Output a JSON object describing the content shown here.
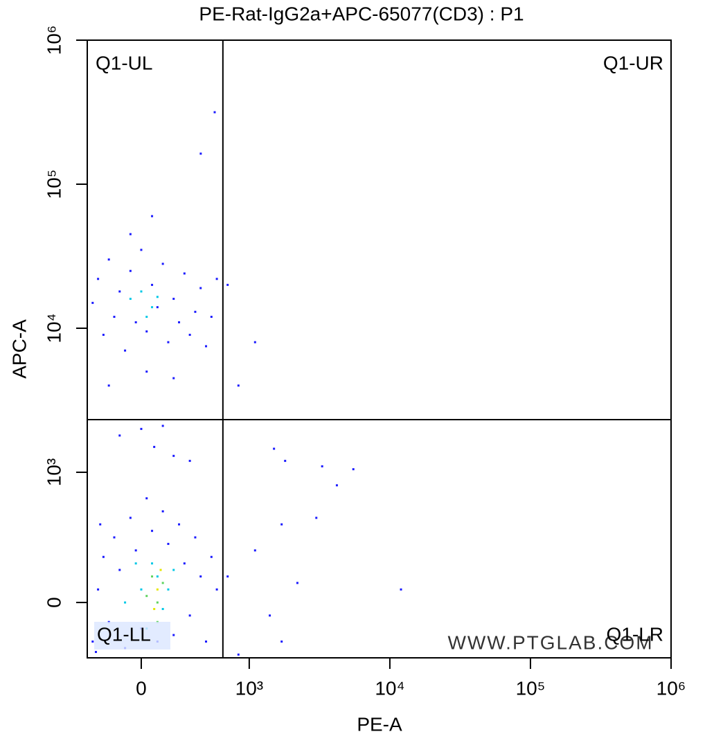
{
  "chart_data": {
    "type": "scatter",
    "title": "PE-Rat-IgG2a+APC-65077(CD3) : P1",
    "x_label": "PE-A",
    "y_label": "APC-A",
    "xscale": "biexponential",
    "yscale": "biexponential",
    "xlim": [
      -500,
      1000000
    ],
    "ylim": [
      -425,
      1000000
    ],
    "xticks": [
      0,
      {
        "value": 1000,
        "label": "10³"
      },
      {
        "value": 10000,
        "label": "10⁴"
      },
      {
        "value": 100000,
        "label": "10⁵"
      },
      {
        "value": 1000000,
        "label": "10⁶"
      }
    ],
    "yticks": [
      0,
      {
        "value": 1000,
        "label": "10³"
      },
      {
        "value": 10000,
        "label": "10⁴"
      },
      {
        "value": 100000,
        "label": "10⁵"
      },
      {
        "value": 1000000,
        "label": "10⁶"
      }
    ],
    "gate": {
      "x": 756,
      "y": 2320
    },
    "quadrants": [
      "Q1-UL",
      "Q1-UR",
      "Q1-LL",
      "Q1-LR"
    ],
    "watermark": "WWW.PTGLAB.COM",
    "series": [
      {
        "color": "#1a1aff",
        "x": [
          -450,
          -400,
          -350,
          -300,
          -250,
          -200,
          -150,
          -100,
          -50,
          0,
          50,
          100,
          150,
          200,
          250,
          300,
          350,
          400,
          450,
          500,
          550,
          600,
          650,
          700,
          -420,
          -380,
          120,
          -200,
          300,
          450,
          0,
          200,
          -450,
          -400,
          -350,
          -300,
          -250,
          -200,
          -150,
          -100,
          -50,
          0,
          50,
          100,
          150,
          200,
          250,
          300,
          350,
          400,
          450,
          500,
          550,
          600,
          650,
          700,
          -100,
          50,
          300,
          -300,
          100,
          800,
          1100,
          900,
          1500,
          1800,
          3300,
          5500,
          4200,
          3000,
          1700,
          1100,
          2200,
          12000,
          800,
          1400,
          1700,
          900,
          680,
          551
        ],
        "y": [
          -300,
          100,
          350,
          -150,
          500,
          250,
          -350,
          650,
          400,
          -200,
          800,
          550,
          -300,
          700,
          450,
          -250,
          600,
          300,
          -100,
          500,
          200,
          -300,
          350,
          100,
          -380,
          600,
          1500,
          1800,
          1300,
          1200,
          2000,
          2100,
          15000,
          22000,
          9000,
          30000,
          12000,
          18000,
          7000,
          25000,
          11000,
          35000,
          9500,
          20000,
          14000,
          28000,
          8000,
          16000,
          11000,
          24000,
          9000,
          13000,
          19000,
          7500,
          12000,
          22000,
          45000,
          5000,
          4500,
          4000,
          60000,
          20000,
          8000,
          4000,
          1457,
          1200,
          1100,
          1050,
          900,
          650,
          600,
          400,
          150,
          100,
          200,
          -100,
          -300,
          -400,
          316000,
          163000
        ]
      },
      {
        "color": "#00c8e6",
        "x": [
          0,
          100,
          200,
          50,
          150,
          -50,
          250,
          -150,
          300,
          -100,
          0,
          100,
          150,
          50
        ],
        "y": [
          100,
          300,
          -50,
          -200,
          200,
          300,
          100,
          0,
          250,
          16000,
          18000,
          14000,
          16500,
          12000
        ]
      },
      {
        "color": "#5fd35f",
        "x": [
          100,
          150,
          200,
          50,
          150
        ],
        "y": [
          200,
          0,
          150,
          50,
          -150
        ]
      },
      {
        "color": "#e6e600",
        "x": [
          150,
          120,
          180
        ],
        "y": [
          100,
          -50,
          250
        ]
      }
    ]
  }
}
